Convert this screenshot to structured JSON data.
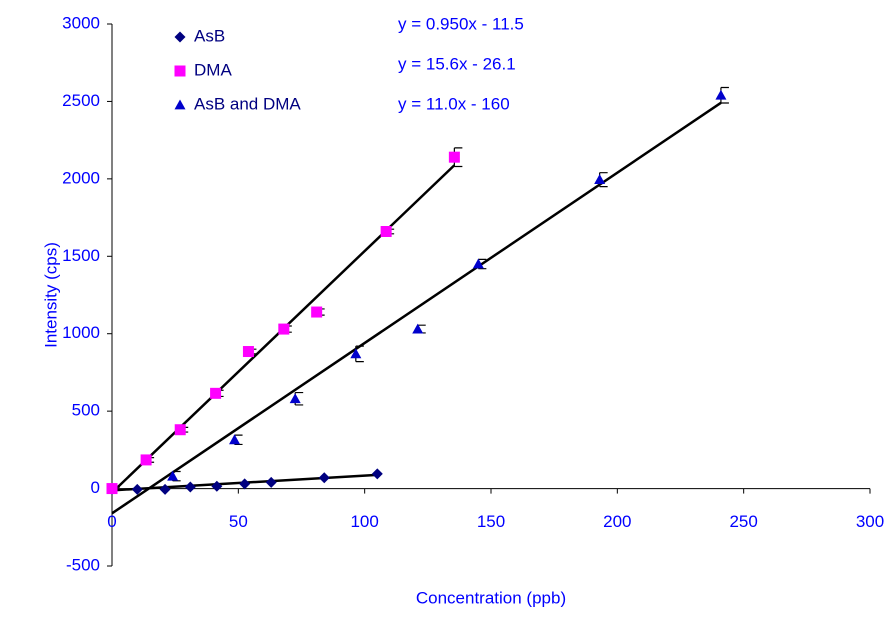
{
  "chart_data": {
    "type": "scatter",
    "x_label": "Concentration (ppb)",
    "y_label": "Intensity (cps)",
    "xlim": [
      0,
      300
    ],
    "ylim": [
      -500,
      3000
    ],
    "xticks": [
      0,
      50,
      100,
      150,
      200,
      250,
      300
    ],
    "yticks": [
      -500,
      0,
      500,
      1000,
      1500,
      2000,
      2500,
      3000
    ],
    "grid": false,
    "legend": "upper left",
    "series": [
      {
        "name": "AsB",
        "color": "#000080",
        "marker": "diamond",
        "x": [
          0,
          10,
          21,
          31,
          41.5,
          52.5,
          63,
          84,
          105
        ],
        "values": [
          -5,
          -5,
          -5,
          10,
          15,
          30,
          40,
          70,
          95
        ],
        "trendline": {
          "label": "y = 0.950x - 11.5",
          "slope": 0.95,
          "intercept": -11.5,
          "x_range": [
            0,
            105
          ]
        }
      },
      {
        "name": "DMA",
        "color": "#ff00ff",
        "marker": "square",
        "x": [
          0,
          13.5,
          27,
          41,
          54,
          68,
          81,
          108.5,
          135.5
        ],
        "values": [
          0,
          185,
          380,
          615,
          885,
          1030,
          1140,
          1660,
          2140
        ],
        "errors": [
          10,
          15,
          15,
          20,
          15,
          20,
          20,
          15,
          60
        ],
        "trendline": {
          "label": "y = 15.6x - 26.1",
          "slope": 15.6,
          "intercept": -26.1,
          "x_range": [
            0,
            135.5
          ]
        }
      },
      {
        "name": "AsB and DMA",
        "color": "#0000cc",
        "marker": "triangle",
        "x": [
          24,
          48.5,
          72.5,
          96.5,
          121,
          145,
          193,
          241
        ],
        "values": [
          80,
          315,
          580,
          870,
          1030,
          1450,
          1995,
          2540
        ],
        "errors": [
          30,
          30,
          40,
          50,
          25,
          30,
          45,
          50
        ],
        "trendline": {
          "label": "y = 11.0x - 160",
          "slope": 11.0,
          "intercept": -160,
          "x_range": [
            0,
            241
          ]
        }
      }
    ]
  }
}
